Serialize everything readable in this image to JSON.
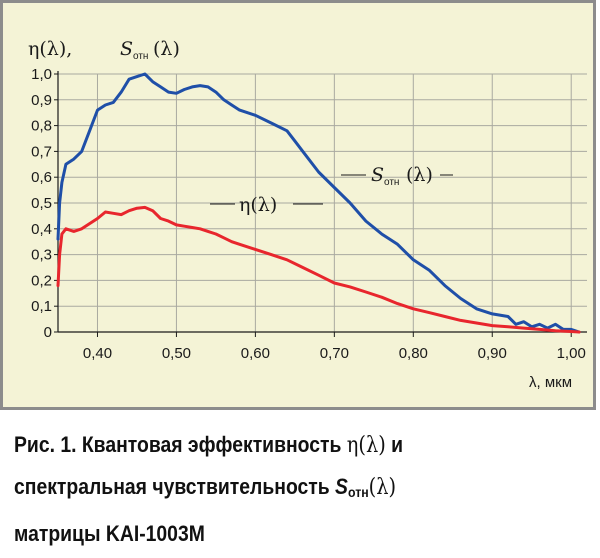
{
  "chart_data": {
    "type": "line",
    "ylabel_eta": "η(λ),",
    "ylabel_s": "S",
    "ylabel_s_sub": "отн",
    "ylabel_s_tail": "(λ)",
    "xlabel": "λ, мкм",
    "xlim": [
      0.35,
      1.02
    ],
    "ylim": [
      0,
      1.0
    ],
    "x_ticks": [
      0.4,
      0.5,
      0.6,
      0.7,
      0.8,
      0.9,
      1.0
    ],
    "x_tick_labels": [
      "0,40",
      "0,50",
      "0,60",
      "0,70",
      "0,80",
      "0,90",
      "1,00"
    ],
    "y_ticks": [
      0,
      0.1,
      0.2,
      0.3,
      0.4,
      0.5,
      0.6,
      0.7,
      0.8,
      0.9,
      1.0
    ],
    "y_tick_labels": [
      "0",
      "0,1",
      "0,2",
      "0,3",
      "0,4",
      "0,5",
      "0,6",
      "0,7",
      "0,8",
      "0,9",
      "1,0"
    ],
    "series": [
      {
        "name": "S",
        "name_sub": "отн",
        "name_tail": "(λ)",
        "color": "#1f4fa8",
        "x": [
          0.35,
          0.352,
          0.355,
          0.36,
          0.37,
          0.38,
          0.39,
          0.4,
          0.41,
          0.42,
          0.43,
          0.44,
          0.45,
          0.46,
          0.47,
          0.48,
          0.49,
          0.5,
          0.51,
          0.52,
          0.53,
          0.54,
          0.55,
          0.56,
          0.57,
          0.58,
          0.6,
          0.62,
          0.64,
          0.65,
          0.66,
          0.68,
          0.7,
          0.72,
          0.74,
          0.76,
          0.77,
          0.78,
          0.8,
          0.82,
          0.84,
          0.86,
          0.88,
          0.9,
          0.92,
          0.93,
          0.94,
          0.95,
          0.96,
          0.97,
          0.98,
          0.99,
          1.0,
          1.01
        ],
        "y": [
          0.36,
          0.5,
          0.58,
          0.65,
          0.67,
          0.7,
          0.78,
          0.86,
          0.88,
          0.89,
          0.93,
          0.98,
          0.99,
          1.0,
          0.97,
          0.95,
          0.93,
          0.925,
          0.94,
          0.95,
          0.955,
          0.95,
          0.93,
          0.9,
          0.88,
          0.86,
          0.84,
          0.81,
          0.78,
          0.74,
          0.7,
          0.62,
          0.56,
          0.5,
          0.43,
          0.38,
          0.36,
          0.34,
          0.28,
          0.24,
          0.18,
          0.13,
          0.09,
          0.07,
          0.06,
          0.03,
          0.04,
          0.02,
          0.03,
          0.015,
          0.03,
          0.01,
          0.01,
          0.0
        ]
      },
      {
        "name": "η(λ)",
        "color": "#e8262d",
        "x": [
          0.35,
          0.352,
          0.355,
          0.36,
          0.37,
          0.38,
          0.39,
          0.4,
          0.41,
          0.42,
          0.43,
          0.44,
          0.45,
          0.46,
          0.47,
          0.48,
          0.49,
          0.5,
          0.51,
          0.52,
          0.53,
          0.54,
          0.55,
          0.56,
          0.57,
          0.58,
          0.6,
          0.62,
          0.64,
          0.66,
          0.68,
          0.7,
          0.72,
          0.74,
          0.76,
          0.78,
          0.8,
          0.82,
          0.84,
          0.86,
          0.88,
          0.9,
          0.92,
          0.94,
          0.96,
          0.98,
          1.0,
          1.01
        ],
        "y": [
          0.18,
          0.3,
          0.38,
          0.4,
          0.39,
          0.4,
          0.42,
          0.44,
          0.465,
          0.46,
          0.455,
          0.47,
          0.48,
          0.483,
          0.47,
          0.44,
          0.43,
          0.415,
          0.41,
          0.405,
          0.4,
          0.39,
          0.38,
          0.365,
          0.35,
          0.34,
          0.32,
          0.3,
          0.28,
          0.25,
          0.22,
          0.19,
          0.175,
          0.155,
          0.135,
          0.11,
          0.09,
          0.075,
          0.06,
          0.045,
          0.035,
          0.025,
          0.02,
          0.015,
          0.01,
          0.005,
          0.002,
          0.0
        ]
      }
    ]
  },
  "caption": {
    "line1_text": "Рис. 1. Квантовая эффективность ",
    "line1_symbol": "η(λ)",
    "line1_tail": " и",
    "line2_text": "спектральная чувствительность ",
    "line2_symbol": "S",
    "line2_sub": "отн",
    "line2_tail": "(λ)",
    "line3_text": "матрицы KAI-1003M"
  }
}
